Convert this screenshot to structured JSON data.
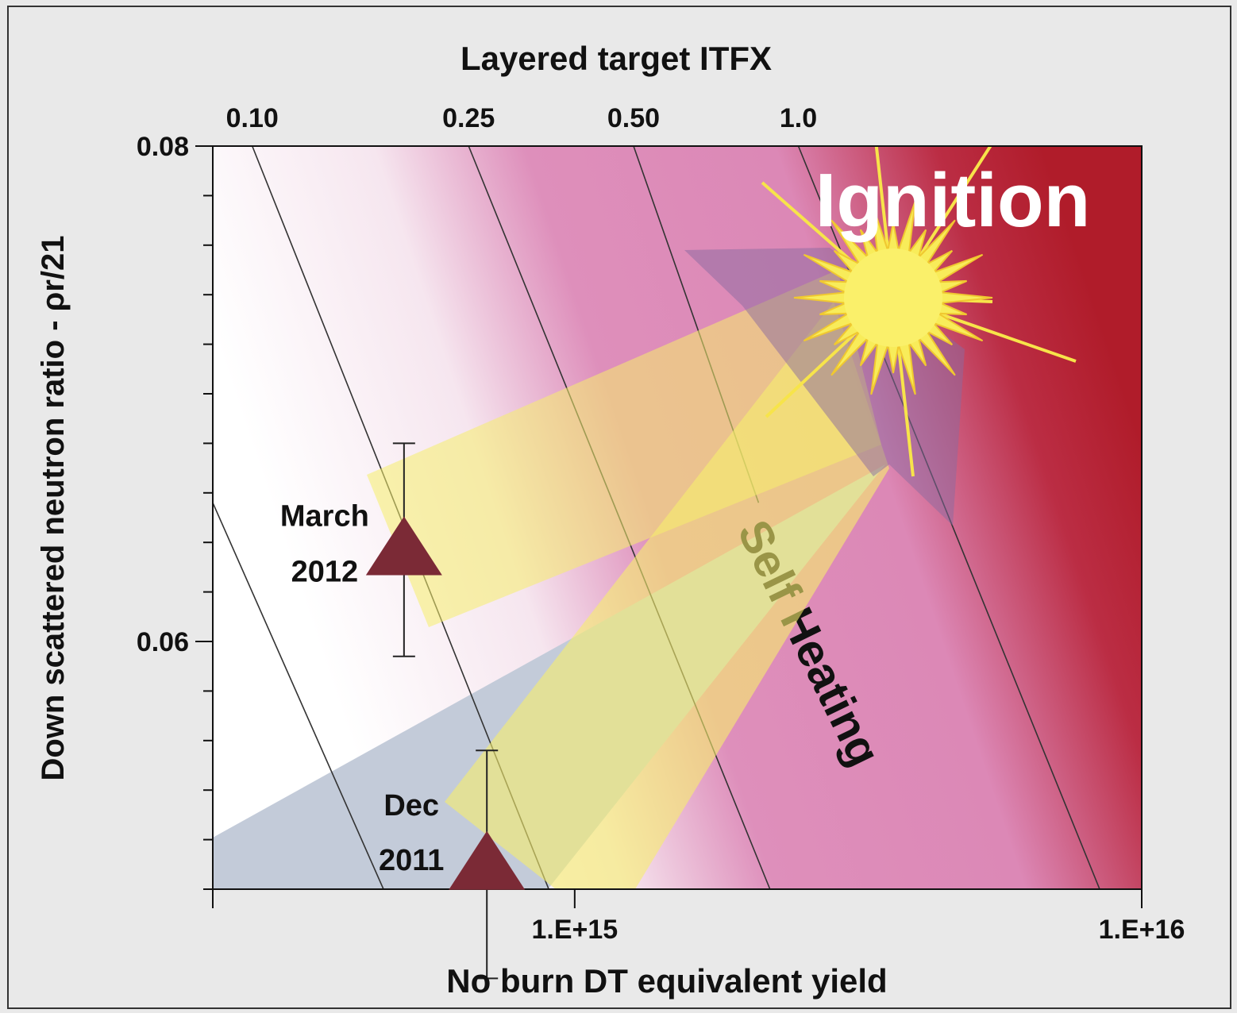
{
  "chart_data": {
    "type": "scatter",
    "title": "Layered target ITFX",
    "xlabel": "No burn DT equivalent yield",
    "ylabel": "Down scattered neutron ratio - ρr/21",
    "xscale": "log",
    "xlim": [
      230000000000000.0,
      1e+16
    ],
    "xticks": [
      {
        "value": 1000000000000000.0,
        "label": "1.E+15"
      },
      {
        "value": 1e+16,
        "label": "1.E+16"
      }
    ],
    "x2ticks": [
      {
        "value": 270000000000000.0,
        "label": "0.10"
      },
      {
        "value": 650000000000000.0,
        "label": "0.25"
      },
      {
        "value": 1270000000000000.0,
        "label": "0.50"
      },
      {
        "value": 2480000000000000.0,
        "label": "1.0"
      }
    ],
    "ylim": [
      0.05,
      0.08
    ],
    "yticks": [
      0.06,
      0.08
    ],
    "yminorticks": [
      0.05,
      0.052,
      0.054,
      0.056,
      0.058,
      0.062,
      0.064,
      0.066,
      0.068,
      0.07,
      0.072,
      0.074,
      0.076,
      0.078
    ],
    "contours": [
      {
        "x": [
          230000000000000.0,
          460000000000000.0
        ],
        "values": [
          0.0656,
          0.05
        ]
      },
      {
        "x": [
          270000000000000.0,
          900000000000000.0
        ],
        "values": [
          0.08,
          0.05
        ]
      },
      {
        "x": [
          650000000000000.0,
          2210000000000000.0
        ],
        "values": [
          0.08,
          0.05
        ]
      },
      {
        "x": [
          1270000000000000.0,
          2110000000000000.0
        ],
        "values": [
          0.08,
          0.0656
        ]
      },
      {
        "x": [
          2480000000000000.0,
          8430000000000000.0
        ],
        "values": [
          0.08,
          0.05
        ]
      }
    ],
    "x": [
      500000000000000.0,
      700000000000000.0
    ],
    "values": [
      0.0637,
      0.051
    ],
    "errors": [
      0.0043,
      0.0046
    ],
    "point_labels": [
      [
        "March",
        "2012"
      ],
      [
        "Dec",
        "2011"
      ]
    ],
    "color": "#7b2a36",
    "annotations": [
      "Ignition",
      "Self Heating"
    ]
  }
}
